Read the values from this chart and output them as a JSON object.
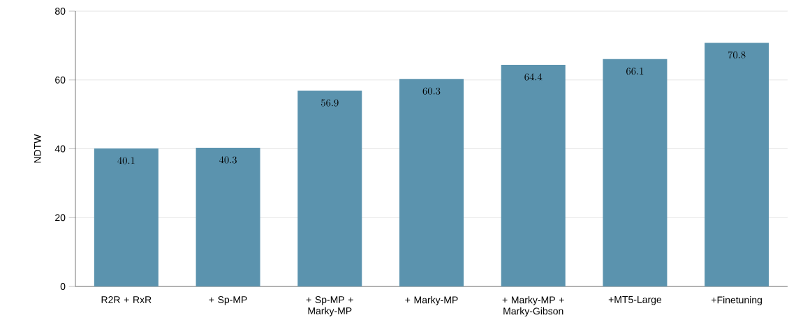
{
  "chart_data": {
    "type": "bar",
    "ylabel": "NDTW",
    "categories": [
      "R2R + RxR",
      "+ Sp-MP",
      "+ Sp-MP + Marky-MP",
      "+ Marky-MP",
      "+ Marky-MP + Marky-Gibson",
      "+MT5-Large",
      "+Finetuning"
    ],
    "values": [
      40.1,
      40.3,
      56.9,
      60.3,
      64.4,
      66.1,
      70.8
    ],
    "color": "#5b93ae",
    "ylim": [
      0,
      80
    ],
    "yticks": [
      0,
      20,
      40,
      60,
      80
    ],
    "grid": "y",
    "data_labels": true
  }
}
